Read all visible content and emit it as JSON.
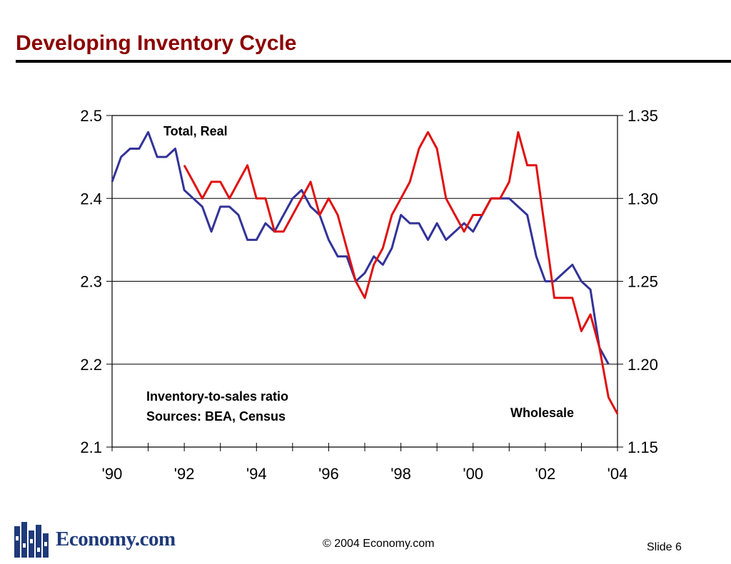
{
  "slide": {
    "title": "Developing Inventory Cycle",
    "copyright": "© 2004 Economy.com",
    "slide_number": "Slide 6",
    "logo_text": "Economy.com",
    "colors": {
      "title": "#8b0000",
      "logo": "#1f3a7a"
    }
  },
  "chart_data": {
    "type": "line",
    "title": "",
    "xlabel": "",
    "ylabel": "",
    "x_ticks": [
      "'90",
      "'92",
      "'94",
      "'96",
      "'98",
      "'00",
      "'02",
      "'04"
    ],
    "x_range": [
      1990,
      2004
    ],
    "left_axis": {
      "ticks": [
        "2.5",
        "2.4",
        "2.3",
        "2.2",
        "2.1"
      ],
      "range": [
        2.1,
        2.5
      ]
    },
    "right_axis": {
      "ticks": [
        "1.35",
        "1.30",
        "1.25",
        "1.20",
        "1.15"
      ],
      "range": [
        1.15,
        1.35
      ]
    },
    "grid": "horizontal",
    "annotations": {
      "total_label": "Total, Real",
      "wholesale_label": "Wholesale",
      "note_line1": "Inventory-to-sales ratio",
      "note_line2": "Sources: BEA, Census"
    },
    "series": [
      {
        "name": "Total, Real",
        "axis": "left",
        "color": "#333399",
        "x": [
          1990.0,
          1990.25,
          1990.5,
          1990.75,
          1991.0,
          1991.25,
          1991.5,
          1991.75,
          1992.0,
          1992.25,
          1992.5,
          1992.75,
          1993.0,
          1993.25,
          1993.5,
          1993.75,
          1994.0,
          1994.25,
          1994.5,
          1994.75,
          1995.0,
          1995.25,
          1995.5,
          1995.75,
          1996.0,
          1996.25,
          1996.5,
          1996.75,
          1997.0,
          1997.25,
          1997.5,
          1997.75,
          1998.0,
          1998.25,
          1998.5,
          1998.75,
          1999.0,
          1999.25,
          1999.5,
          1999.75,
          2000.0,
          2000.25,
          2000.5,
          2000.75,
          2001.0,
          2001.25,
          2001.5,
          2001.75,
          2002.0,
          2002.25,
          2002.5,
          2002.75,
          2003.0,
          2003.25,
          2003.5,
          2003.75
        ],
        "values": [
          2.42,
          2.45,
          2.46,
          2.46,
          2.48,
          2.45,
          2.45,
          2.46,
          2.41,
          2.4,
          2.39,
          2.36,
          2.39,
          2.39,
          2.38,
          2.35,
          2.35,
          2.37,
          2.36,
          2.38,
          2.4,
          2.41,
          2.39,
          2.38,
          2.35,
          2.33,
          2.33,
          2.3,
          2.31,
          2.33,
          2.32,
          2.34,
          2.38,
          2.37,
          2.37,
          2.35,
          2.37,
          2.35,
          2.36,
          2.37,
          2.36,
          2.38,
          2.4,
          2.4,
          2.4,
          2.39,
          2.38,
          2.33,
          2.3,
          2.3,
          2.31,
          2.32,
          2.3,
          2.29,
          2.22,
          2.2
        ]
      },
      {
        "name": "Wholesale",
        "axis": "right",
        "color": "#e01010",
        "x": [
          1992.0,
          1992.25,
          1992.5,
          1992.75,
          1993.0,
          1993.25,
          1993.5,
          1993.75,
          1994.0,
          1994.25,
          1994.5,
          1994.75,
          1995.0,
          1995.25,
          1995.5,
          1995.75,
          1996.0,
          1996.25,
          1996.5,
          1996.75,
          1997.0,
          1997.25,
          1997.5,
          1997.75,
          1998.0,
          1998.25,
          1998.5,
          1998.75,
          1999.0,
          1999.25,
          1999.5,
          1999.75,
          2000.0,
          2000.25,
          2000.5,
          2000.75,
          2001.0,
          2001.25,
          2001.5,
          2001.75,
          2002.0,
          2002.25,
          2002.5,
          2002.75,
          2003.0,
          2003.25,
          2003.5,
          2003.75,
          2004.0
        ],
        "values": [
          1.32,
          1.31,
          1.3,
          1.31,
          1.31,
          1.3,
          1.31,
          1.32,
          1.3,
          1.3,
          1.28,
          1.28,
          1.29,
          1.3,
          1.31,
          1.29,
          1.3,
          1.29,
          1.27,
          1.25,
          1.24,
          1.26,
          1.27,
          1.29,
          1.3,
          1.31,
          1.33,
          1.34,
          1.33,
          1.3,
          1.29,
          1.28,
          1.29,
          1.29,
          1.3,
          1.3,
          1.31,
          1.34,
          1.32,
          1.32,
          1.28,
          1.24,
          1.24,
          1.24,
          1.22,
          1.23,
          1.21,
          1.18,
          1.17
        ]
      }
    ]
  }
}
